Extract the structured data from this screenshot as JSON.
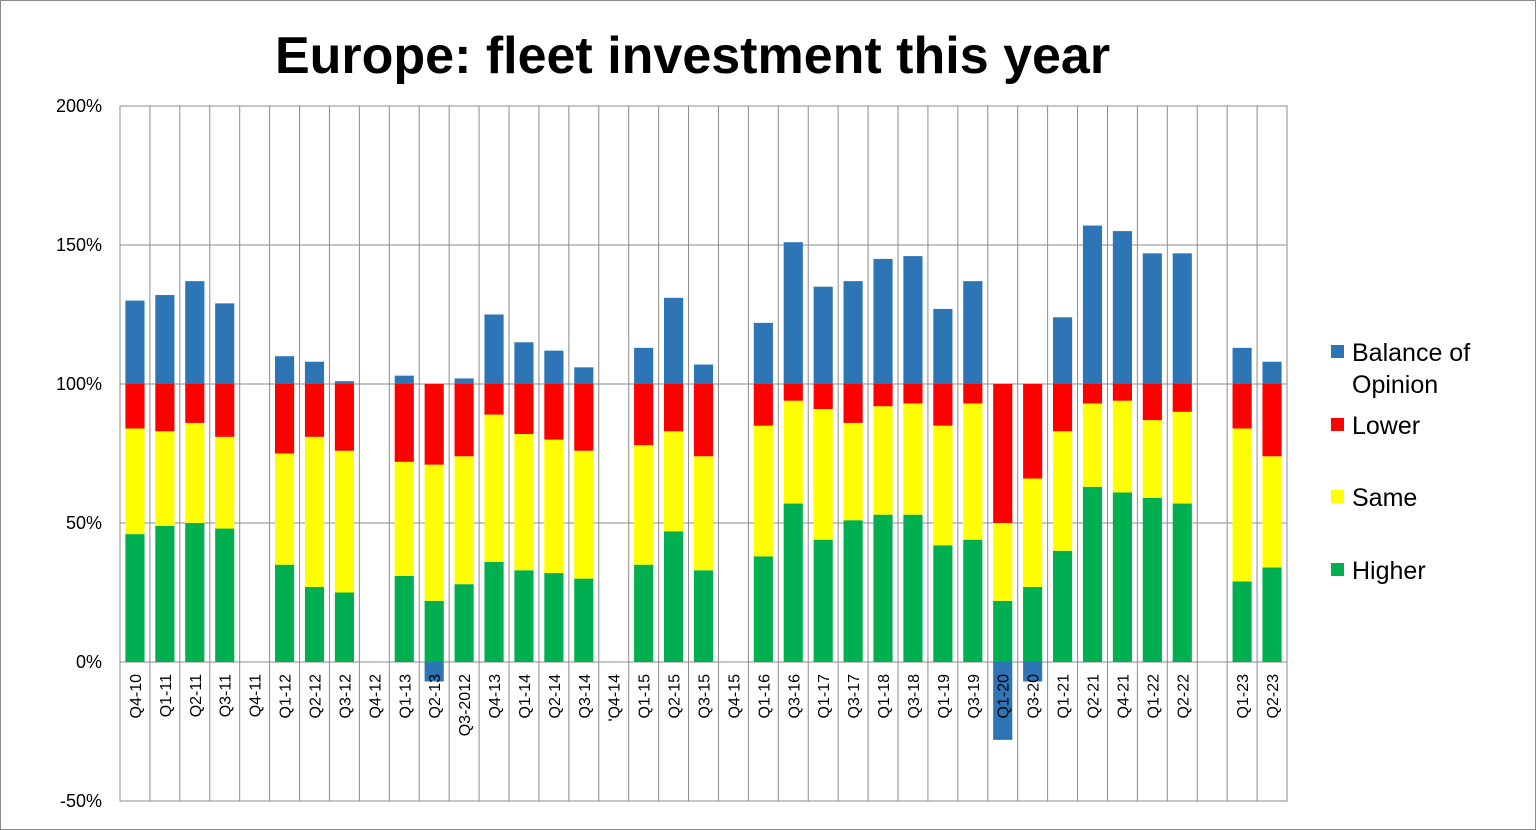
{
  "chart_data": {
    "type": "bar",
    "stacked": true,
    "title": "Europe: fleet investment this year",
    "xlabel": "",
    "ylabel": "",
    "ylim": [
      -0.5,
      2.0
    ],
    "yticks": [
      "200%",
      "150%",
      "100%",
      "50%",
      "0%",
      "-50%"
    ],
    "yticks_values": [
      2.0,
      1.5,
      1.0,
      0.5,
      0.0,
      -0.5
    ],
    "grid": true,
    "legend_position": "right",
    "categories": [
      "Q4-10",
      "Q1-11",
      "Q2-11",
      "Q3-11",
      "Q4-11",
      "Q1-12",
      "Q2-12",
      "Q3-12",
      "Q4-12",
      "Q1-13",
      "Q2-13",
      "Q3-2012",
      "Q4-13",
      "Q1-14",
      "Q2-14",
      "Q3-14",
      "'Q4-14",
      "Q1-15",
      "Q2-15",
      "Q3-15",
      "Q4-15",
      "Q1-16",
      "Q3-16",
      "Q1-17",
      "Q3-17",
      "Q1-18",
      "Q3-18",
      "Q1-19",
      "Q3-19",
      "Q1-20",
      "Q3-20",
      "Q1-21",
      "Q2-21",
      "Q4-21",
      "Q1-22",
      "Q2-22",
      "",
      "Q1-23",
      "Q2-23"
    ],
    "series": [
      {
        "name": "Higher",
        "color": "#00b050",
        "values": [
          0.46,
          0.49,
          0.5,
          0.48,
          null,
          0.35,
          0.27,
          0.25,
          null,
          0.31,
          0.22,
          0.28,
          0.36,
          0.33,
          0.32,
          0.3,
          null,
          0.35,
          0.47,
          0.33,
          null,
          0.38,
          0.57,
          0.44,
          0.51,
          0.53,
          0.53,
          0.42,
          0.44,
          0.22,
          0.27,
          0.4,
          0.63,
          0.61,
          0.59,
          0.57,
          null,
          0.29,
          0.34
        ]
      },
      {
        "name": "Same",
        "color": "#ffff00",
        "values": [
          0.38,
          0.34,
          0.36,
          0.33,
          null,
          0.4,
          0.54,
          0.51,
          null,
          0.41,
          0.49,
          0.46,
          0.53,
          0.49,
          0.48,
          0.46,
          null,
          0.43,
          0.36,
          0.41,
          null,
          0.47,
          0.37,
          0.47,
          0.35,
          0.39,
          0.4,
          0.43,
          0.49,
          0.28,
          0.39,
          0.43,
          0.3,
          0.33,
          0.28,
          0.33,
          null,
          0.55,
          0.4
        ]
      },
      {
        "name": "Lower",
        "color": "#ff0000",
        "values": [
          0.16,
          0.17,
          0.14,
          0.19,
          null,
          0.25,
          0.19,
          0.24,
          null,
          0.28,
          0.29,
          0.26,
          0.11,
          0.18,
          0.2,
          0.24,
          null,
          0.22,
          0.17,
          0.26,
          null,
          0.15,
          0.06,
          0.09,
          0.14,
          0.08,
          0.07,
          0.15,
          0.07,
          0.5,
          0.34,
          0.17,
          0.07,
          0.06,
          0.13,
          0.1,
          null,
          0.16,
          0.26
        ]
      },
      {
        "name": "Balance of Opinion",
        "color": "#2e75b6",
        "values": [
          0.3,
          0.32,
          0.37,
          0.29,
          null,
          0.1,
          0.08,
          0.01,
          null,
          0.03,
          -0.07,
          0.02,
          0.25,
          0.15,
          0.12,
          0.06,
          null,
          0.13,
          0.31,
          0.07,
          null,
          0.22,
          0.51,
          0.35,
          0.37,
          0.45,
          0.46,
          0.27,
          0.37,
          -0.28,
          -0.07,
          0.24,
          0.57,
          0.55,
          0.47,
          0.47,
          null,
          0.13,
          0.08
        ]
      }
    ],
    "legend": [
      {
        "series": "Balance of Opinion",
        "lines": [
          "Balance of",
          "Opinion"
        ],
        "color": "#2e75b6"
      },
      {
        "series": "Lower",
        "lines": [
          "Lower"
        ],
        "color": "#ff0000"
      },
      {
        "series": "Same",
        "lines": [
          "Same"
        ],
        "color": "#ffff00"
      },
      {
        "series": "Higher",
        "lines": [
          "Higher"
        ],
        "color": "#00b050"
      }
    ]
  }
}
